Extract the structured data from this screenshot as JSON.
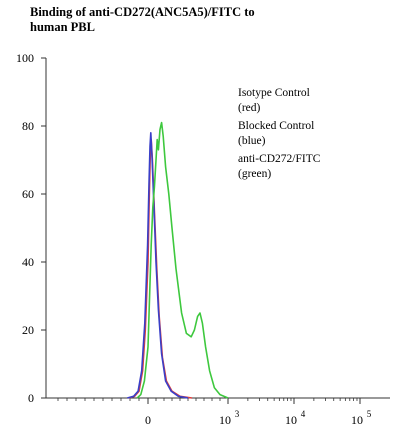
{
  "chart_data": {
    "type": "line",
    "title": [
      "Binding of anti-CD272(ANC5A5)/FITC to",
      "human PBL"
    ],
    "xlabel": "",
    "ylabel": "",
    "x_scale": "biexponential",
    "ylim": [
      0,
      100
    ],
    "y_ticks": [
      0,
      20,
      40,
      60,
      80,
      100
    ],
    "x_ticks": [
      {
        "value": 0,
        "label": "0"
      },
      {
        "value": 1000,
        "label": "10",
        "sup": "3"
      },
      {
        "value": 10000,
        "label": "10",
        "sup": "4"
      },
      {
        "value": 100000,
        "label": "10",
        "sup": "5"
      }
    ],
    "grid": false,
    "legend_placement": "top-right",
    "legend": [
      {
        "line1": "Isotype Control",
        "line2": "(red)",
        "color": "#d94040"
      },
      {
        "line1": "Blocked Control",
        "line2": "(blue)",
        "color": "#3a3fc8"
      },
      {
        "line1": "anti-CD272/FITC",
        "line2": "(green)",
        "color": "#3ec83e"
      }
    ],
    "series": [
      {
        "color": "#d94040",
        "points": [
          [
            -220,
            0
          ],
          [
            -150,
            0.5
          ],
          [
            -100,
            2
          ],
          [
            -60,
            8
          ],
          [
            -30,
            20
          ],
          [
            0,
            40
          ],
          [
            15,
            58
          ],
          [
            30,
            73
          ],
          [
            40,
            76
          ],
          [
            55,
            70
          ],
          [
            80,
            55
          ],
          [
            110,
            38
          ],
          [
            140,
            24
          ],
          [
            180,
            12
          ],
          [
            230,
            5
          ],
          [
            300,
            2
          ],
          [
            400,
            0.5
          ],
          [
            550,
            0
          ]
        ]
      },
      {
        "color": "#3a3fc8",
        "points": [
          [
            -230,
            0
          ],
          [
            -160,
            0.5
          ],
          [
            -110,
            2
          ],
          [
            -70,
            8
          ],
          [
            -35,
            22
          ],
          [
            -5,
            45
          ],
          [
            12,
            63
          ],
          [
            25,
            74
          ],
          [
            35,
            78
          ],
          [
            50,
            71
          ],
          [
            75,
            56
          ],
          [
            100,
            40
          ],
          [
            130,
            26
          ],
          [
            170,
            13
          ],
          [
            220,
            5
          ],
          [
            290,
            2
          ],
          [
            380,
            0.5
          ],
          [
            500,
            0
          ]
        ]
      },
      {
        "color": "#3ec83e",
        "points": [
          [
            -120,
            0
          ],
          [
            -80,
            1
          ],
          [
            -40,
            5
          ],
          [
            0,
            15
          ],
          [
            20,
            30
          ],
          [
            40,
            45
          ],
          [
            60,
            56
          ],
          [
            80,
            62
          ],
          [
            100,
            70
          ],
          [
            115,
            76
          ],
          [
            130,
            73
          ],
          [
            150,
            79
          ],
          [
            170,
            81
          ],
          [
            190,
            77
          ],
          [
            220,
            68
          ],
          [
            260,
            60
          ],
          [
            300,
            50
          ],
          [
            350,
            38
          ],
          [
            420,
            25
          ],
          [
            480,
            19
          ],
          [
            540,
            18
          ],
          [
            580,
            20
          ],
          [
            620,
            24
          ],
          [
            650,
            25
          ],
          [
            680,
            22
          ],
          [
            720,
            15
          ],
          [
            770,
            8
          ],
          [
            830,
            3
          ],
          [
            900,
            1
          ],
          [
            1000,
            0
          ]
        ]
      }
    ]
  }
}
